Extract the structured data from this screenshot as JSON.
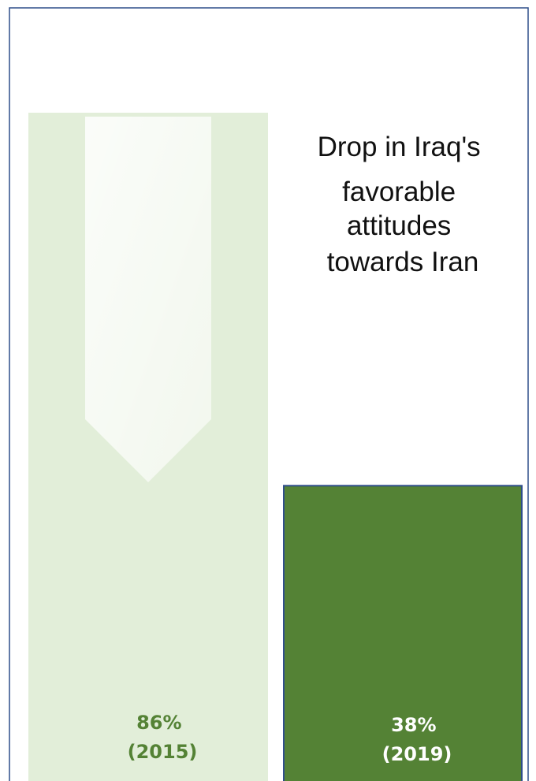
{
  "chart_data": {
    "type": "bar",
    "title_lines": [
      "Drop in Iraq's",
      "favorable",
      "attitudes",
      "towards Iran"
    ],
    "categories": [
      "2015",
      "2019"
    ],
    "values": [
      86,
      38
    ],
    "labels": [
      {
        "value": "86%",
        "year": "(2015)"
      },
      {
        "value": "38%",
        "year": "(2019)"
      }
    ],
    "ylim": [
      0,
      86
    ],
    "grid": false,
    "colors": {
      "bar_2015": "#e2eed9",
      "bar_2015_label": "#548235",
      "bar_2019": "#548235",
      "bar_2019_border": "#2f4e8a",
      "bar_2019_label": "#ffffff",
      "frame": "#2f4e8a",
      "arrow": "#f3f8ef"
    }
  }
}
